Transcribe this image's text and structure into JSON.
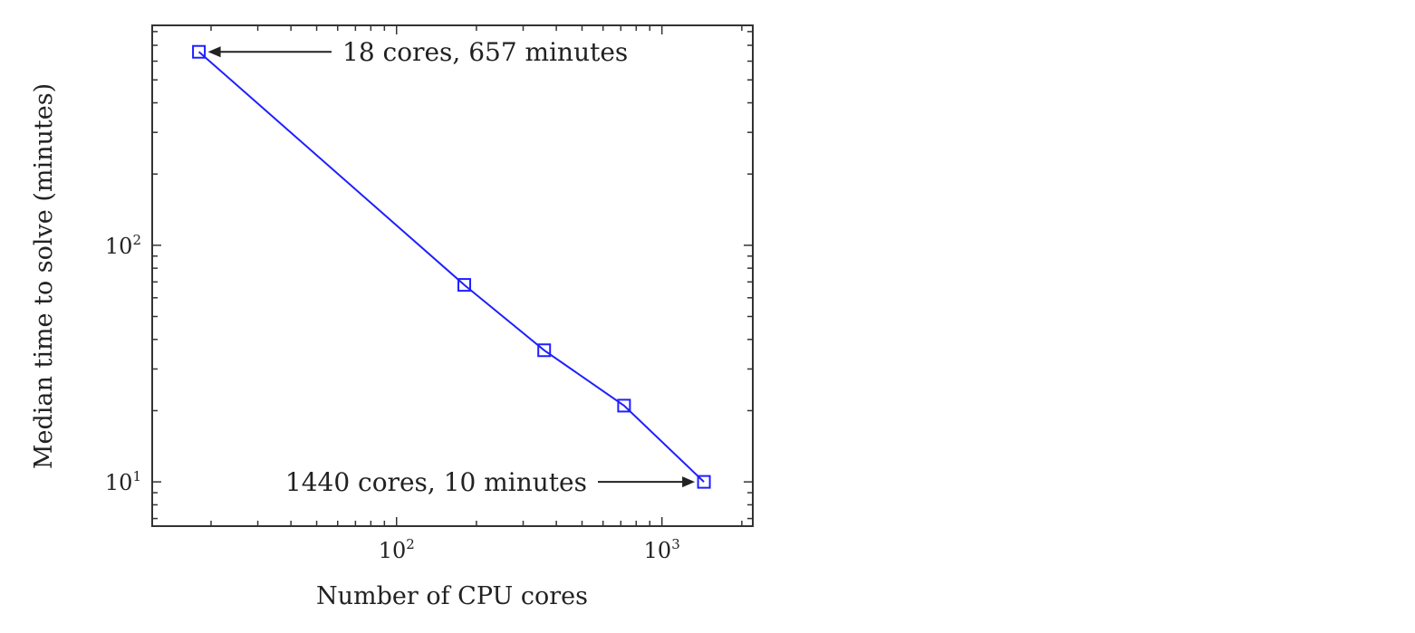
{
  "chart_data": {
    "type": "line",
    "xscale": "log",
    "yscale": "log",
    "xlabel": "Number of CPU cores",
    "ylabel": "Median time to solve (minutes)",
    "xlim": [
      12,
      2200
    ],
    "ylim": [
      6.5,
      850
    ],
    "grid": false,
    "x_ticks": [
      {
        "value": 100,
        "base": "10",
        "exp": "2"
      },
      {
        "value": 1000,
        "base": "10",
        "exp": "3"
      }
    ],
    "y_ticks": [
      {
        "value": 10,
        "base": "10",
        "exp": "1"
      },
      {
        "value": 100,
        "base": "10",
        "exp": "2"
      }
    ],
    "series": [
      {
        "color": "#1f1fff",
        "marker": "square",
        "x": [
          18,
          180,
          360,
          720,
          1440
        ],
        "y": [
          657,
          68,
          36,
          21,
          10
        ]
      }
    ],
    "annotations": [
      {
        "text": "18 cores, 657 minutes",
        "x": 18,
        "y": 657
      },
      {
        "text": "1440 cores, 10 minutes",
        "x": 1440,
        "y": 10
      }
    ]
  }
}
